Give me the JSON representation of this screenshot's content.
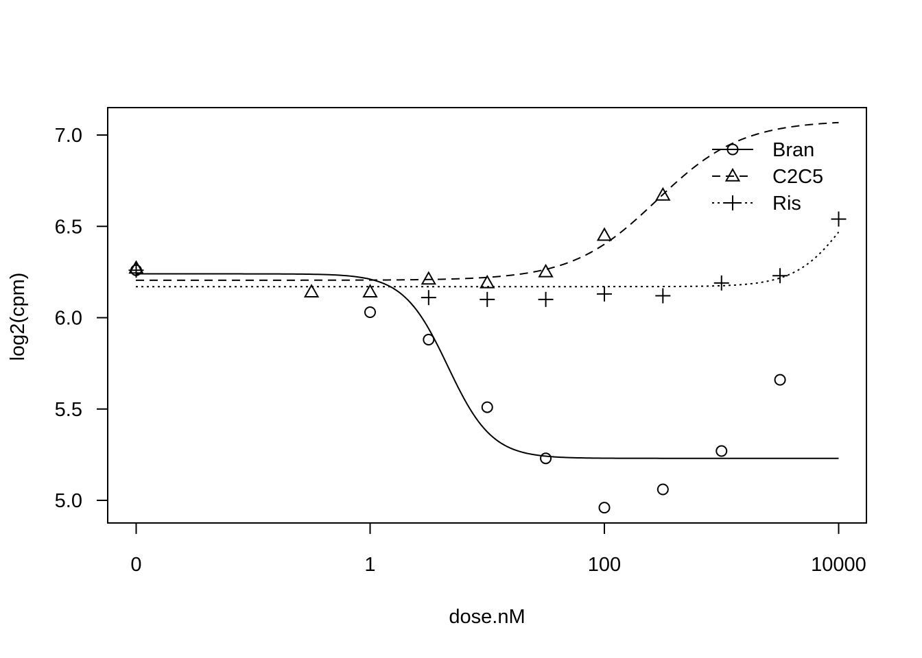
{
  "chart_data": {
    "type": "scatter",
    "xlabel": "dose.nM",
    "ylabel": "log2(cpm)",
    "x_scale": "log10 (zero dose drawn at the 0 tick)",
    "x_ticks": [
      0,
      1,
      100,
      10000
    ],
    "x_tick_labels": [
      "0",
      "1",
      "100",
      "10000"
    ],
    "y_ticks": [
      5.0,
      5.5,
      6.0,
      6.5,
      7.0
    ],
    "y_tick_labels": [
      "5.0",
      "5.5",
      "6.0",
      "6.5",
      "7.0"
    ],
    "ylim": [
      4.87,
      7.15
    ],
    "grid": false,
    "legend_position": "top-right",
    "series": [
      {
        "name": "Bran",
        "marker": "circle",
        "line_style": "solid",
        "points": [
          {
            "x": 0,
            "y": 6.26
          },
          {
            "x": 1,
            "y": 6.03
          },
          {
            "x": 3.16,
            "y": 5.88
          },
          {
            "x": 10,
            "y": 5.51
          },
          {
            "x": 31.6,
            "y": 5.23
          },
          {
            "x": 100,
            "y": 4.96
          },
          {
            "x": 316,
            "y": 5.06
          },
          {
            "x": 1000,
            "y": 5.27
          },
          {
            "x": 3160,
            "y": 5.66
          }
        ],
        "fit": {
          "top": 6.24,
          "bottom": 5.23,
          "ec50": 4.6,
          "slope": 2.3
        }
      },
      {
        "name": "C2C5",
        "marker": "triangle",
        "line_style": "dashed",
        "points": [
          {
            "x": 0,
            "y": 6.27
          },
          {
            "x": 0.316,
            "y": 6.14
          },
          {
            "x": 1,
            "y": 6.14
          },
          {
            "x": 3.16,
            "y": 6.21
          },
          {
            "x": 10,
            "y": 6.19
          },
          {
            "x": 31.6,
            "y": 6.25
          },
          {
            "x": 100,
            "y": 6.45
          },
          {
            "x": 316,
            "y": 6.67
          }
        ],
        "fit": {
          "bottom": 6.205,
          "top": 7.08,
          "ec50": 280,
          "slope": 1.2
        }
      },
      {
        "name": "Ris",
        "marker": "plus",
        "line_style": "dotted",
        "points": [
          {
            "x": 0,
            "y": 6.26
          },
          {
            "x": 3.16,
            "y": 6.11
          },
          {
            "x": 10,
            "y": 6.1
          },
          {
            "x": 31.6,
            "y": 6.1
          },
          {
            "x": 100,
            "y": 6.13
          },
          {
            "x": 316,
            "y": 6.12
          },
          {
            "x": 1000,
            "y": 6.19
          },
          {
            "x": 3160,
            "y": 6.23
          },
          {
            "x": 10000,
            "y": 6.54
          }
        ],
        "fit": {
          "bottom": 6.17,
          "top": 6.9,
          "ec50": 12000,
          "slope": 2.0
        }
      }
    ]
  }
}
